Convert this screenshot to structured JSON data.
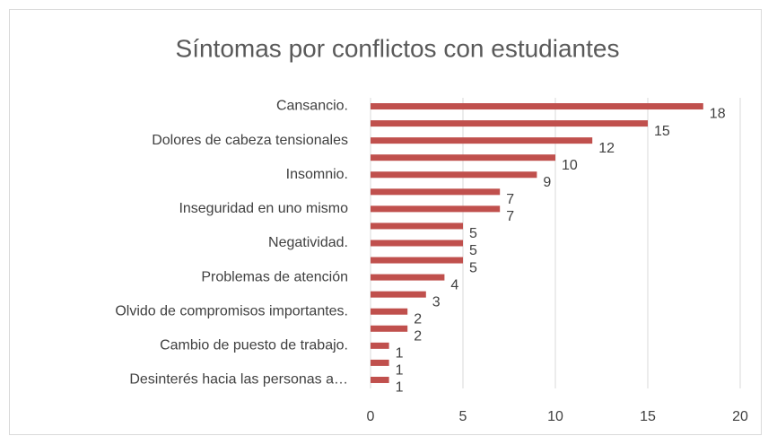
{
  "chart_data": {
    "type": "bar",
    "orientation": "horizontal",
    "title": "Síntomas por conflictos con estudiantes",
    "categories": [
      "Cansancio.",
      null,
      "Dolores de cabeza tensionales",
      null,
      "Insomnio.",
      null,
      "Inseguridad en uno mismo",
      null,
      "Negatividad.",
      null,
      "Problemas de atención",
      null,
      "Olvido de compromisos importantes.",
      null,
      "Cambio de puesto de trabajo.",
      null,
      "Desinterés hacia las personas a…"
    ],
    "values": [
      18,
      15,
      12,
      10,
      9,
      7,
      7,
      5,
      5,
      5,
      4,
      3,
      2,
      2,
      1,
      1,
      1
    ],
    "color": "#c0504d",
    "xlim": [
      0,
      20
    ],
    "xticks": [
      0,
      5,
      10,
      15,
      20
    ],
    "grid": true
  }
}
